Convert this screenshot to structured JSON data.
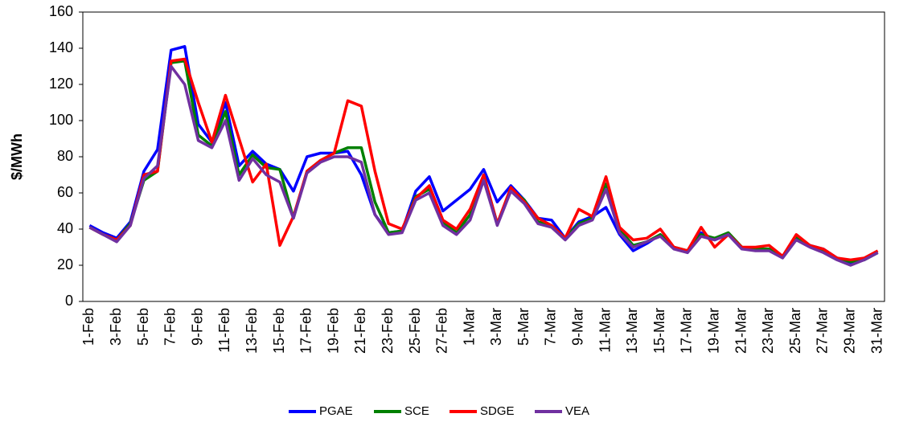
{
  "chart_data": {
    "type": "line",
    "y_label": "$/MWh",
    "categories": [
      "1-Feb",
      null,
      "3-Feb",
      null,
      "5-Feb",
      null,
      "7-Feb",
      null,
      "9-Feb",
      null,
      "11-Feb",
      null,
      "13-Feb",
      null,
      "15-Feb",
      null,
      "17-Feb",
      null,
      "19-Feb",
      null,
      "21-Feb",
      null,
      "23-Feb",
      null,
      "25-Feb",
      null,
      "27-Feb",
      null,
      "1-Mar",
      null,
      "3-Mar",
      null,
      "5-Mar",
      null,
      "7-Mar",
      null,
      "9-Mar",
      null,
      "11-Mar",
      null,
      "13-Mar",
      null,
      "15-Mar",
      null,
      "17-Mar",
      null,
      "19-Mar",
      null,
      "21-Mar",
      null,
      "23-Mar",
      null,
      "25-Mar",
      null,
      "27-Mar",
      null,
      "29-Mar",
      null,
      "31-Mar"
    ],
    "series": [
      {
        "name": "PGAE",
        "color": "#0000ff",
        "values": [
          42,
          38,
          35,
          44,
          72,
          84,
          139,
          141,
          98,
          88,
          110,
          75,
          83,
          76,
          73,
          61,
          80,
          82,
          82,
          83,
          70,
          48,
          38,
          39,
          61,
          69,
          50,
          56,
          62,
          73,
          55,
          64,
          56,
          46,
          45,
          35,
          44,
          47,
          52,
          37,
          28,
          32,
          37,
          30,
          27,
          38,
          34,
          37,
          29,
          29,
          29,
          25,
          35,
          31,
          29,
          24,
          21,
          23,
          27
        ]
      },
      {
        "name": "SCE",
        "color": "#008000",
        "values": [
          41,
          37,
          34,
          43,
          67,
          72,
          132,
          133,
          92,
          86,
          105,
          70,
          81,
          74,
          73,
          46,
          72,
          78,
          82,
          85,
          85,
          55,
          38,
          39,
          58,
          62,
          44,
          38,
          48,
          70,
          43,
          62,
          56,
          44,
          42,
          35,
          43,
          46,
          65,
          40,
          31,
          33,
          37,
          30,
          28,
          37,
          35,
          38,
          30,
          29,
          29,
          25,
          36,
          31,
          28,
          24,
          22,
          23,
          27
        ]
      },
      {
        "name": "SDGE",
        "color": "#ff0000",
        "values": [
          41,
          37,
          34,
          42,
          70,
          72,
          133,
          134,
          110,
          88,
          114,
          90,
          66,
          76,
          31,
          47,
          72,
          78,
          82,
          111,
          108,
          72,
          43,
          40,
          57,
          64,
          45,
          40,
          51,
          70,
          43,
          63,
          55,
          46,
          42,
          35,
          51,
          47,
          69,
          41,
          34,
          35,
          40,
          30,
          28,
          41,
          30,
          37,
          30,
          30,
          31,
          25,
          37,
          31,
          29,
          24,
          23,
          24,
          28
        ]
      },
      {
        "name": "VEA",
        "color": "#7030a0",
        "values": [
          41,
          37,
          33,
          42,
          68,
          75,
          130,
          120,
          89,
          85,
          100,
          67,
          79,
          70,
          66,
          46,
          71,
          77,
          80,
          80,
          77,
          48,
          37,
          38,
          56,
          60,
          42,
          37,
          45,
          67,
          42,
          61,
          54,
          43,
          41,
          34,
          42,
          45,
          62,
          38,
          30,
          33,
          36,
          29,
          27,
          36,
          34,
          37,
          29,
          28,
          28,
          24,
          34,
          30,
          27,
          23,
          20,
          23,
          27
        ]
      }
    ],
    "ylim": [
      0,
      160
    ],
    "yticks": [
      0,
      20,
      40,
      60,
      80,
      100,
      120,
      140,
      160
    ],
    "legend": "bottom"
  }
}
